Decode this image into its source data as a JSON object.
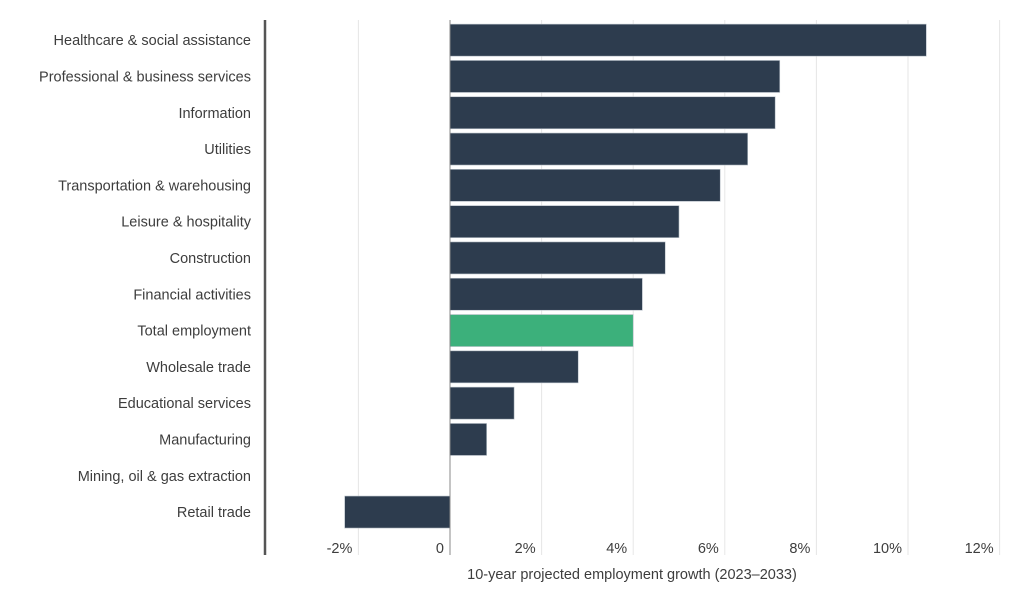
{
  "chart_data": {
    "type": "bar",
    "orientation": "horizontal",
    "categories": [
      "Healthcare & social assistance",
      "Professional & business services",
      "Information",
      "Utilities",
      "Transportation & warehousing",
      "Leisure & hospitality",
      "Construction",
      "Financial activities",
      "Total employment",
      "Wholesale trade",
      "Educational services",
      "Manufacturing",
      "Mining, oil & gas extraction",
      "Retail trade"
    ],
    "values": [
      10.4,
      7.2,
      7.1,
      6.5,
      5.9,
      5.0,
      4.7,
      4.2,
      4.0,
      2.8,
      1.4,
      0.8,
      0.0,
      -2.3
    ],
    "xlabel": "10-year projected employment growth (2023–2033)",
    "ylabel": "",
    "title": "",
    "xlim": [
      -4,
      12
    ],
    "x_ticks": [
      -2,
      0,
      2,
      4,
      6,
      8,
      10,
      12
    ],
    "x_tick_labels": [
      "-2%",
      "0",
      "2%",
      "4%",
      "6%",
      "8%",
      "10%",
      "12%"
    ],
    "grid": "vertical",
    "colors": {
      "default": "#2d3c4e",
      "highlight": "#3cb07b",
      "highlight_category": "Total employment",
      "grid": "#e6e6e6",
      "axis": "#555555"
    }
  }
}
